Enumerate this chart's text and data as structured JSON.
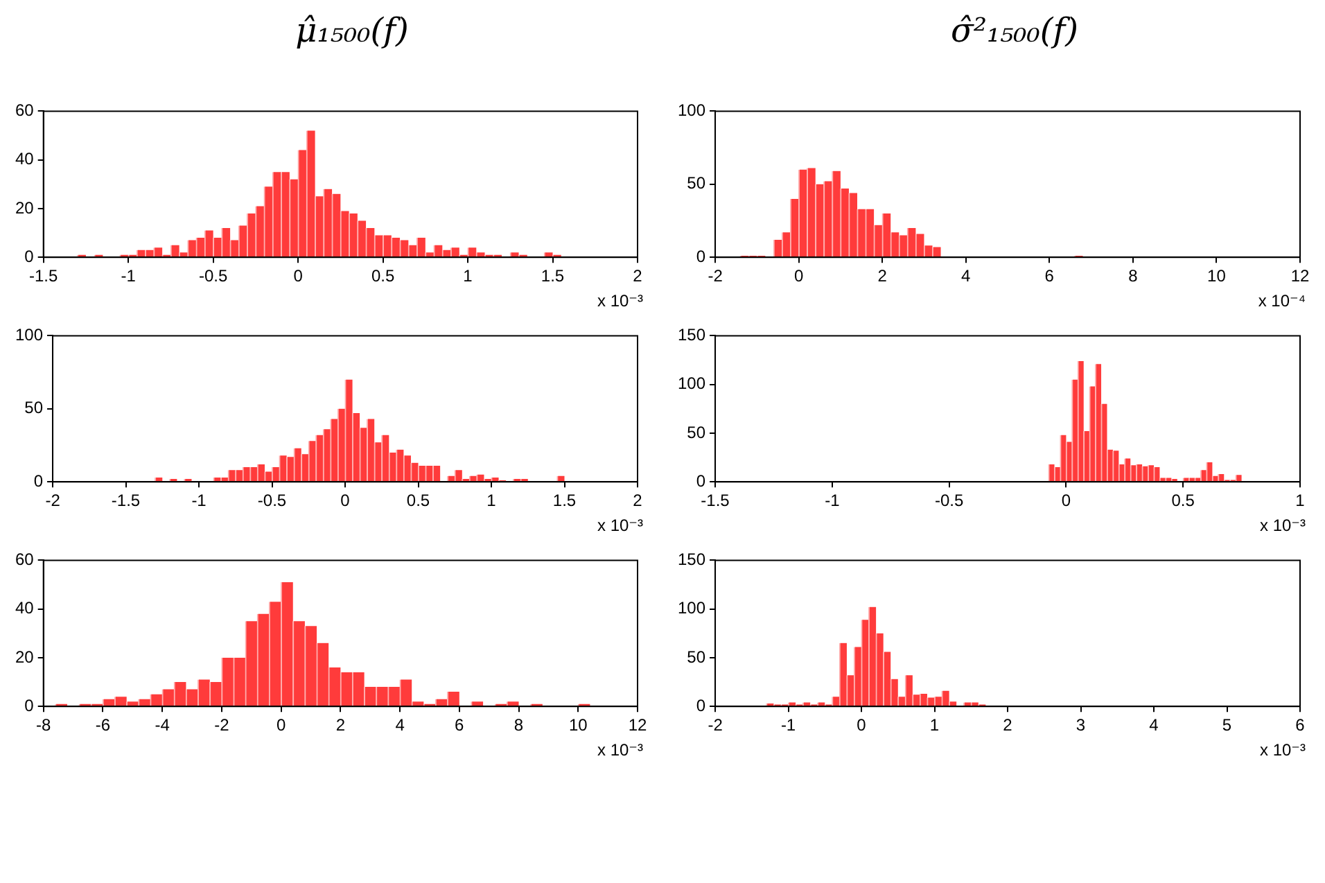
{
  "chart_data": [
    {
      "type": "histogram",
      "title": "μ̂₁₅₀₀(f)",
      "xlabel": "x 10⁻³",
      "color": "#ff3b3b",
      "xlim": [
        -1.5,
        2
      ],
      "xticks": [
        -1.5,
        -1,
        -0.5,
        0,
        0.5,
        1,
        1.5,
        2
      ],
      "ylim": [
        0,
        60
      ],
      "yticks": [
        0,
        20,
        40,
        60
      ],
      "bins": [
        -1.3,
        -1.25,
        -1.2,
        -1.15,
        -1.1,
        -1.05,
        -1.0,
        -0.95,
        -0.9,
        -0.85,
        -0.8,
        -0.75,
        -0.7,
        -0.65,
        -0.6,
        -0.55,
        -0.5,
        -0.45,
        -0.4,
        -0.35,
        -0.3,
        -0.25,
        -0.2,
        -0.15,
        -0.1,
        -0.05,
        0,
        0.05,
        0.1,
        0.15,
        0.2,
        0.25,
        0.3,
        0.35,
        0.4,
        0.45,
        0.5,
        0.55,
        0.6,
        0.65,
        0.7,
        0.75,
        0.8,
        0.85,
        0.9,
        0.95,
        1.0,
        1.05,
        1.1,
        1.15,
        1.2,
        1.25,
        1.3,
        1.35,
        1.4,
        1.45,
        1.5,
        1.55,
        1.6
      ],
      "values": [
        1,
        0,
        1,
        0,
        0,
        1,
        1,
        3,
        3,
        4,
        1,
        5,
        2,
        7,
        8,
        11,
        8,
        12,
        7,
        13,
        18,
        21,
        29,
        35,
        35,
        32,
        44,
        52,
        25,
        28,
        26,
        19,
        18,
        15,
        12,
        9,
        9,
        8,
        7,
        5,
        8,
        2,
        5,
        3,
        4,
        1,
        4,
        2,
        1,
        1,
        0,
        2,
        1,
        0,
        0,
        2,
        1,
        0
      ]
    },
    {
      "type": "histogram",
      "title": "σ̂²₁₅₀₀(f)",
      "xlabel": "x 10⁻⁴",
      "color": "#ff3b3b",
      "xlim": [
        -2,
        12
      ],
      "xticks": [
        -2,
        0,
        2,
        4,
        6,
        8,
        10,
        12
      ],
      "ylim": [
        0,
        100
      ],
      "yticks": [
        0,
        50,
        100
      ],
      "bins": [
        -1.6,
        -1.4,
        -1.2,
        -1.0,
        -0.8,
        -0.6,
        -0.4,
        -0.2,
        0,
        0.2,
        0.4,
        0.6,
        0.8,
        1.0,
        1.2,
        1.4,
        1.6,
        1.8,
        2.0,
        2.2,
        2.4,
        2.6,
        2.8,
        3.0,
        3.2,
        3.4,
        3.6,
        3.8,
        4.0,
        4.2,
        4.4,
        4.6,
        4.8,
        5.0,
        5.2,
        5.4,
        5.6,
        5.8,
        6.0,
        6.2,
        6.4,
        6.6,
        6.8
      ],
      "values": [
        0,
        1,
        1,
        1,
        0,
        12,
        17,
        40,
        60,
        61,
        50,
        52,
        59,
        47,
        44,
        33,
        33,
        22,
        30,
        17,
        15,
        20,
        16,
        8,
        7,
        0,
        0,
        0,
        0,
        0,
        0,
        0,
        0,
        0,
        0,
        0,
        0,
        0,
        0,
        0,
        0,
        1
      ]
    },
    {
      "type": "histogram",
      "xlabel": "x 10⁻³",
      "color": "#ff3b3b",
      "xlim": [
        -2,
        2
      ],
      "xticks": [
        -2,
        -1.5,
        -1,
        -0.5,
        0,
        0.5,
        1,
        1.5,
        2
      ],
      "ylim": [
        0,
        100
      ],
      "yticks": [
        0,
        50,
        100
      ],
      "bins": [
        -1.3,
        -1.25,
        -1.2,
        -1.15,
        -1.1,
        -1.05,
        -1.0,
        -0.95,
        -0.9,
        -0.85,
        -0.8,
        -0.75,
        -0.7,
        -0.65,
        -0.6,
        -0.55,
        -0.5,
        -0.45,
        -0.4,
        -0.35,
        -0.3,
        -0.25,
        -0.2,
        -0.15,
        -0.1,
        -0.05,
        0,
        0.05,
        0.1,
        0.15,
        0.2,
        0.25,
        0.3,
        0.35,
        0.4,
        0.45,
        0.5,
        0.55,
        0.6,
        0.65,
        0.7,
        0.75,
        0.8,
        0.85,
        0.9,
        0.95,
        1.0,
        1.05,
        1.1,
        1.15,
        1.2,
        1.25,
        1.3,
        1.35,
        1.4,
        1.45,
        1.5
      ],
      "values": [
        3,
        0,
        2,
        0,
        2,
        0,
        0,
        0,
        3,
        3,
        8,
        8,
        10,
        10,
        12,
        7,
        10,
        18,
        17,
        23,
        19,
        28,
        32,
        36,
        43,
        50,
        70,
        47,
        37,
        43,
        27,
        32,
        20,
        22,
        18,
        13,
        11,
        11,
        11,
        0,
        4,
        8,
        2,
        4,
        5,
        2,
        3,
        1,
        0,
        2,
        2,
        0,
        0,
        0,
        0,
        4
      ]
    },
    {
      "type": "histogram",
      "xlabel": "x 10⁻³",
      "color": "#ff3b3b",
      "xlim": [
        -1.5,
        1
      ],
      "xticks": [
        -1.5,
        -1,
        -0.5,
        0,
        0.5,
        1
      ],
      "ylim": [
        0,
        150
      ],
      "yticks": [
        0,
        50,
        100,
        150
      ],
      "bins": [
        -0.075,
        -0.05,
        -0.025,
        0,
        0.025,
        0.05,
        0.075,
        0.1,
        0.125,
        0.15,
        0.175,
        0.2,
        0.225,
        0.25,
        0.275,
        0.3,
        0.325,
        0.35,
        0.375,
        0.4,
        0.425,
        0.45,
        0.475,
        0.5,
        0.525,
        0.55,
        0.575,
        0.6,
        0.625,
        0.65,
        0.675,
        0.7,
        0.725,
        0.75
      ],
      "values": [
        18,
        15,
        48,
        41,
        105,
        124,
        52,
        98,
        121,
        80,
        33,
        32,
        18,
        24,
        17,
        18,
        16,
        17,
        15,
        4,
        4,
        3,
        0,
        4,
        4,
        4,
        12,
        20,
        6,
        8,
        2,
        2,
        7
      ]
    },
    {
      "type": "histogram",
      "xlabel": "x 10⁻³",
      "color": "#ff3b3b",
      "xlim": [
        -8,
        12
      ],
      "xticks": [
        -8,
        -6,
        -4,
        -2,
        0,
        2,
        4,
        6,
        8,
        10,
        12
      ],
      "ylim": [
        0,
        60
      ],
      "yticks": [
        0,
        20,
        40,
        60
      ],
      "bins": [
        -7.6,
        -7.2,
        -6.8,
        -6.4,
        -6.0,
        -5.6,
        -5.2,
        -4.8,
        -4.4,
        -4.0,
        -3.6,
        -3.2,
        -2.8,
        -2.4,
        -2.0,
        -1.6,
        -1.2,
        -0.8,
        -0.4,
        0,
        0.4,
        0.8,
        1.2,
        1.6,
        2.0,
        2.4,
        2.8,
        3.2,
        3.6,
        4.0,
        4.4,
        4.8,
        5.2,
        5.6,
        6.0,
        6.4,
        6.8,
        7.2,
        7.6,
        8.0,
        8.4,
        8.8,
        9.2,
        9.6,
        10.0,
        10.4
      ],
      "values": [
        1,
        0,
        1,
        1,
        3,
        4,
        2,
        3,
        5,
        7,
        10,
        7,
        11,
        10,
        20,
        20,
        35,
        38,
        43,
        51,
        35,
        33,
        26,
        16,
        14,
        14,
        8,
        8,
        8,
        11,
        2,
        1,
        3,
        6,
        0,
        2,
        0,
        1,
        2,
        0,
        1,
        0,
        0,
        0,
        1
      ]
    },
    {
      "type": "histogram",
      "xlabel": "x 10⁻³",
      "color": "#ff3b3b",
      "xlim": [
        -2,
        6
      ],
      "xticks": [
        -2,
        -1,
        0,
        1,
        2,
        3,
        4,
        5,
        6
      ],
      "ylim": [
        0,
        150
      ],
      "yticks": [
        0,
        50,
        100,
        150
      ],
      "bins": [
        -1.3,
        -1.2,
        -1.1,
        -1.0,
        -0.9,
        -0.8,
        -0.7,
        -0.6,
        -0.5,
        -0.4,
        -0.3,
        -0.2,
        -0.1,
        0,
        0.1,
        0.2,
        0.3,
        0.4,
        0.5,
        0.6,
        0.7,
        0.8,
        0.9,
        1.0,
        1.1,
        1.2,
        1.3,
        1.4,
        1.5,
        1.6,
        1.7
      ],
      "values": [
        3,
        2,
        2,
        4,
        2,
        4,
        2,
        4,
        2,
        10,
        65,
        32,
        61,
        89,
        102,
        75,
        56,
        28,
        10,
        32,
        12,
        13,
        9,
        10,
        16,
        5,
        0,
        4,
        4,
        2
      ]
    }
  ]
}
